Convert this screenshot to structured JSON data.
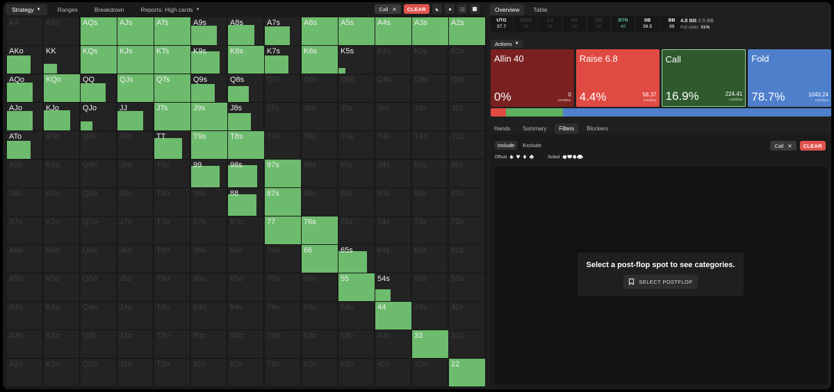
{
  "left": {
    "tabs": [
      {
        "label": "Strategy",
        "dropdown": true,
        "active": true
      },
      {
        "label": "Ranges",
        "dropdown": false,
        "active": false
      },
      {
        "label": "Breakdown",
        "dropdown": false,
        "active": false
      },
      {
        "label": "Reports: High cards",
        "dropdown": true,
        "active": false
      }
    ],
    "filter_chip": "Call",
    "clear_label": "CLEAR",
    "grid": {
      "labels": [
        [
          "AA",
          "AKs",
          "AQs",
          "AJs",
          "ATs",
          "A9s",
          "A8s",
          "A7s",
          "A6s",
          "A5s",
          "A4s",
          "A3s",
          "A2s"
        ],
        [
          "AKo",
          "KK",
          "KQs",
          "KJs",
          "KTs",
          "K9s",
          "K8s",
          "K7s",
          "K6s",
          "K5s",
          "K4s",
          "K3s",
          "K2s"
        ],
        [
          "AQo",
          "KQo",
          "QQ",
          "QJs",
          "QTs",
          "Q9s",
          "Q8s",
          "Q7s",
          "Q6s",
          "Q5s",
          "Q4s",
          "Q3s",
          "Q2s"
        ],
        [
          "AJo",
          "KJo",
          "QJo",
          "JJ",
          "JTs",
          "J9s",
          "J8s",
          "J7s",
          "J6s",
          "J5s",
          "J4s",
          "J3s",
          "J2s"
        ],
        [
          "ATo",
          "KTo",
          "QTo",
          "JTo",
          "TT",
          "T9s",
          "T8s",
          "T7s",
          "T6s",
          "T5s",
          "T4s",
          "T3s",
          "T2s"
        ],
        [
          "A9o",
          "K9o",
          "Q9o",
          "J9o",
          "T9o",
          "99",
          "98s",
          "97s",
          "96s",
          "95s",
          "94s",
          "93s",
          "92s"
        ],
        [
          "A8o",
          "K8o",
          "Q8o",
          "J8o",
          "T8o",
          "98o",
          "88",
          "87s",
          "86s",
          "85s",
          "84s",
          "83s",
          "82s"
        ],
        [
          "A7o",
          "K7o",
          "Q7o",
          "J7o",
          "T7o",
          "97o",
          "87o",
          "77",
          "76s",
          "75s",
          "74s",
          "73s",
          "72s"
        ],
        [
          "A6o",
          "K6o",
          "Q6o",
          "J6o",
          "T6o",
          "96o",
          "86o",
          "76o",
          "66",
          "65s",
          "64s",
          "63s",
          "62s"
        ],
        [
          "A5o",
          "K5o",
          "Q5o",
          "J5o",
          "T5o",
          "95o",
          "85o",
          "75o",
          "65o",
          "55",
          "54s",
          "53s",
          "52s"
        ],
        [
          "A4o",
          "K4o",
          "Q4o",
          "J4o",
          "T4o",
          "94o",
          "84o",
          "74o",
          "64o",
          "54o",
          "44",
          "43s",
          "42s"
        ],
        [
          "A3o",
          "K3o",
          "Q3o",
          "J3o",
          "T3o",
          "93o",
          "83o",
          "73o",
          "63o",
          "53o",
          "43o",
          "33",
          "32s"
        ],
        [
          "A2o",
          "K2o",
          "Q2o",
          "J2o",
          "T2o",
          "92o",
          "82o",
          "72o",
          "62o",
          "52o",
          "42o",
          "32o",
          "22"
        ]
      ],
      "call_frequency": [
        [
          0,
          0,
          1,
          1,
          1,
          0.7,
          0.75,
          0.65,
          1,
          1,
          1,
          1,
          1
        ],
        [
          0.6,
          0.18,
          1,
          1,
          1,
          0.88,
          1,
          0.6,
          1,
          0.05,
          0,
          0,
          0
        ],
        [
          0.7,
          1,
          0.65,
          1,
          1,
          0.6,
          0.45,
          0,
          0,
          0,
          0,
          0,
          0
        ],
        [
          0.7,
          0.75,
          0.15,
          0.7,
          1,
          1,
          0.55,
          0,
          0,
          0,
          0,
          0,
          0
        ],
        [
          0.6,
          0,
          0,
          0,
          0.8,
          1,
          1,
          0,
          0,
          0,
          0,
          0,
          0
        ],
        [
          0,
          0,
          0,
          0,
          0,
          0.85,
          0.9,
          1,
          0,
          0,
          0,
          0,
          0
        ],
        [
          0,
          0,
          0,
          0,
          0,
          0,
          0.85,
          1,
          0,
          0,
          0,
          0,
          0
        ],
        [
          0,
          0,
          0,
          0,
          0,
          0,
          0,
          1,
          1,
          0,
          0,
          0,
          0
        ],
        [
          0,
          0,
          0,
          0,
          0,
          0,
          0,
          0,
          1,
          0.85,
          0,
          0,
          0
        ],
        [
          0,
          0,
          0,
          0,
          0,
          0,
          0,
          0,
          0,
          1,
          0.25,
          0,
          0
        ],
        [
          0,
          0,
          0,
          0,
          0,
          0,
          0,
          0,
          0,
          0,
          1,
          0,
          0
        ],
        [
          0,
          0,
          0,
          0,
          0,
          0,
          0,
          0,
          0,
          0,
          0,
          1,
          0
        ],
        [
          0,
          0,
          0,
          0,
          0,
          0,
          0,
          0,
          0,
          0,
          0,
          0,
          1
        ]
      ],
      "live_cells": [
        [
          0,
          2
        ],
        [
          0,
          3
        ],
        [
          0,
          4
        ],
        [
          0,
          5
        ],
        [
          0,
          6
        ],
        [
          0,
          7
        ],
        [
          0,
          8
        ],
        [
          0,
          9
        ],
        [
          0,
          10
        ],
        [
          0,
          11
        ],
        [
          0,
          12
        ],
        [
          1,
          0
        ],
        [
          1,
          1
        ],
        [
          1,
          2
        ],
        [
          1,
          3
        ],
        [
          1,
          4
        ],
        [
          1,
          5
        ],
        [
          1,
          6
        ],
        [
          1,
          7
        ],
        [
          1,
          8
        ],
        [
          1,
          9
        ],
        [
          2,
          0
        ],
        [
          2,
          1
        ],
        [
          2,
          2
        ],
        [
          2,
          3
        ],
        [
          2,
          4
        ],
        [
          2,
          5
        ],
        [
          2,
          6
        ],
        [
          3,
          0
        ],
        [
          3,
          1
        ],
        [
          3,
          2
        ],
        [
          3,
          3
        ],
        [
          3,
          4
        ],
        [
          3,
          5
        ],
        [
          3,
          6
        ],
        [
          4,
          0
        ],
        [
          4,
          4
        ],
        [
          4,
          5
        ],
        [
          4,
          6
        ],
        [
          5,
          5
        ],
        [
          5,
          6
        ],
        [
          5,
          7
        ],
        [
          6,
          6
        ],
        [
          6,
          7
        ],
        [
          7,
          7
        ],
        [
          7,
          8
        ],
        [
          8,
          8
        ],
        [
          8,
          9
        ],
        [
          9,
          9
        ],
        [
          9,
          10
        ],
        [
          10,
          10
        ],
        [
          11,
          11
        ],
        [
          12,
          12
        ]
      ]
    }
  },
  "right": {
    "tabs": [
      "Overview",
      "Table"
    ],
    "players": [
      {
        "pos": "UTG",
        "stack": "37.7",
        "state": "on"
      },
      {
        "pos": "UTG1",
        "stack": "40",
        "state": "off"
      },
      {
        "pos": "LJ",
        "stack": "40",
        "state": "off"
      },
      {
        "pos": "HJ",
        "stack": "40",
        "state": "off"
      },
      {
        "pos": "CO",
        "stack": "40",
        "state": "off"
      },
      {
        "pos": "BTN",
        "stack": "40",
        "state": "btn"
      },
      {
        "pos": "SB",
        "stack": "39.5",
        "state": "on"
      },
      {
        "pos": "BB",
        "stack": "39",
        "state": "on"
      }
    ],
    "pot": {
      "bet": "4.8 BB",
      "pot": "2.5 BB",
      "odds_label": "Pot odds:",
      "odds": "31%"
    },
    "actions_label": "Actions",
    "actions": [
      {
        "name": "Allin 40",
        "pct": "0%",
        "combos": "0",
        "combos_label": "combos",
        "color": "#7a2020"
      },
      {
        "name": "Raise 6.8",
        "pct": "4.4%",
        "combos": "58.37",
        "combos_label": "combos",
        "color": "#e04a43"
      },
      {
        "name": "Call",
        "pct": "16.9%",
        "combos": "224.41",
        "combos_label": "combos",
        "color": "#2e5a2e"
      },
      {
        "name": "Fold",
        "pct": "78.7%",
        "combos": "1043.24",
        "combos_label": "combos",
        "color": "#4e7fcb"
      }
    ],
    "ratio_bar": [
      {
        "name": "raise",
        "value": 4.4,
        "color": "#e04a43"
      },
      {
        "name": "call",
        "value": 16.9,
        "color": "#5fb05f"
      },
      {
        "name": "fold",
        "value": 78.7,
        "color": "#4e7fcb"
      }
    ],
    "subtabs": [
      "Hands",
      "Summary",
      "Filters",
      "Blockers"
    ],
    "filters": {
      "include": "Include",
      "exclude": "Exclude",
      "offsuit_label": "Offsuit",
      "offsuit_suits": [
        "♠",
        "♥",
        "♦",
        "♣"
      ],
      "suited_label": "Suited",
      "suited_suits": [
        "♠♠",
        "♥♥",
        "♦♦",
        "♣♣"
      ],
      "chip": "Call",
      "clear": "CLEAR"
    },
    "message": "Select a post-flop spot to see categories.",
    "select_button": "SELECT POSTFLOP"
  }
}
